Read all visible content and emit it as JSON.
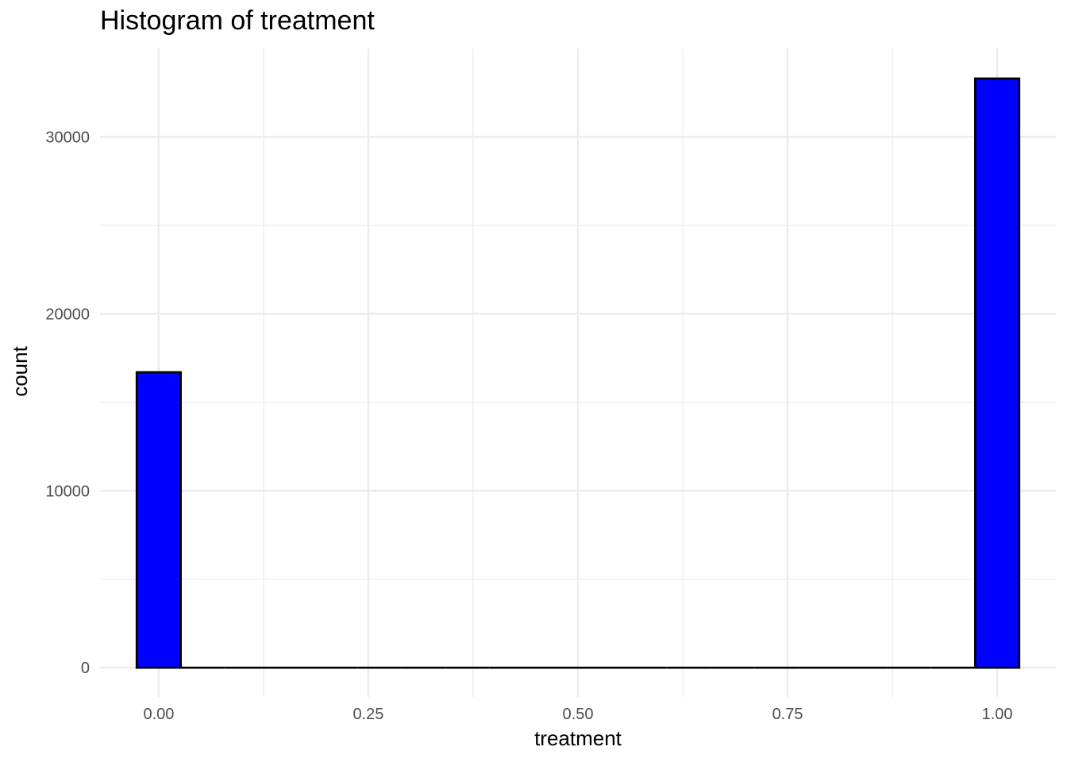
{
  "chart_data": {
    "type": "bar",
    "title": "Histogram of treatment",
    "xlabel": "treatment",
    "ylabel": "count",
    "fill_color": "#0000ff",
    "outline_color": "#000000",
    "grid": true,
    "xlim": [
      -0.07,
      1.07
    ],
    "ylim": [
      -1650,
      35000
    ],
    "x_ticks": [
      0,
      0.25,
      0.5,
      0.75,
      1
    ],
    "x_tick_labels": [
      "0.00",
      "0.25",
      "0.50",
      "0.75",
      "1.00"
    ],
    "y_ticks": [
      0,
      10000,
      20000,
      30000
    ],
    "y_tick_labels": [
      "0",
      "10000",
      "20000",
      "30000"
    ],
    "bin_width": 0.0526,
    "bins": [
      {
        "x": 0.0,
        "count": 16700
      },
      {
        "x": 0.0526,
        "count": 0
      },
      {
        "x": 0.1053,
        "count": 0
      },
      {
        "x": 0.1579,
        "count": 0
      },
      {
        "x": 0.2105,
        "count": 0
      },
      {
        "x": 0.2632,
        "count": 0
      },
      {
        "x": 0.3158,
        "count": 0
      },
      {
        "x": 0.3684,
        "count": 0
      },
      {
        "x": 0.4211,
        "count": 0
      },
      {
        "x": 0.4737,
        "count": 0
      },
      {
        "x": 0.5263,
        "count": 0
      },
      {
        "x": 0.5789,
        "count": 0
      },
      {
        "x": 0.6316,
        "count": 0
      },
      {
        "x": 0.6842,
        "count": 0
      },
      {
        "x": 0.7368,
        "count": 0
      },
      {
        "x": 0.7895,
        "count": 0
      },
      {
        "x": 0.8421,
        "count": 0
      },
      {
        "x": 0.8947,
        "count": 0
      },
      {
        "x": 0.9474,
        "count": 0
      },
      {
        "x": 1.0,
        "count": 33300
      }
    ]
  }
}
